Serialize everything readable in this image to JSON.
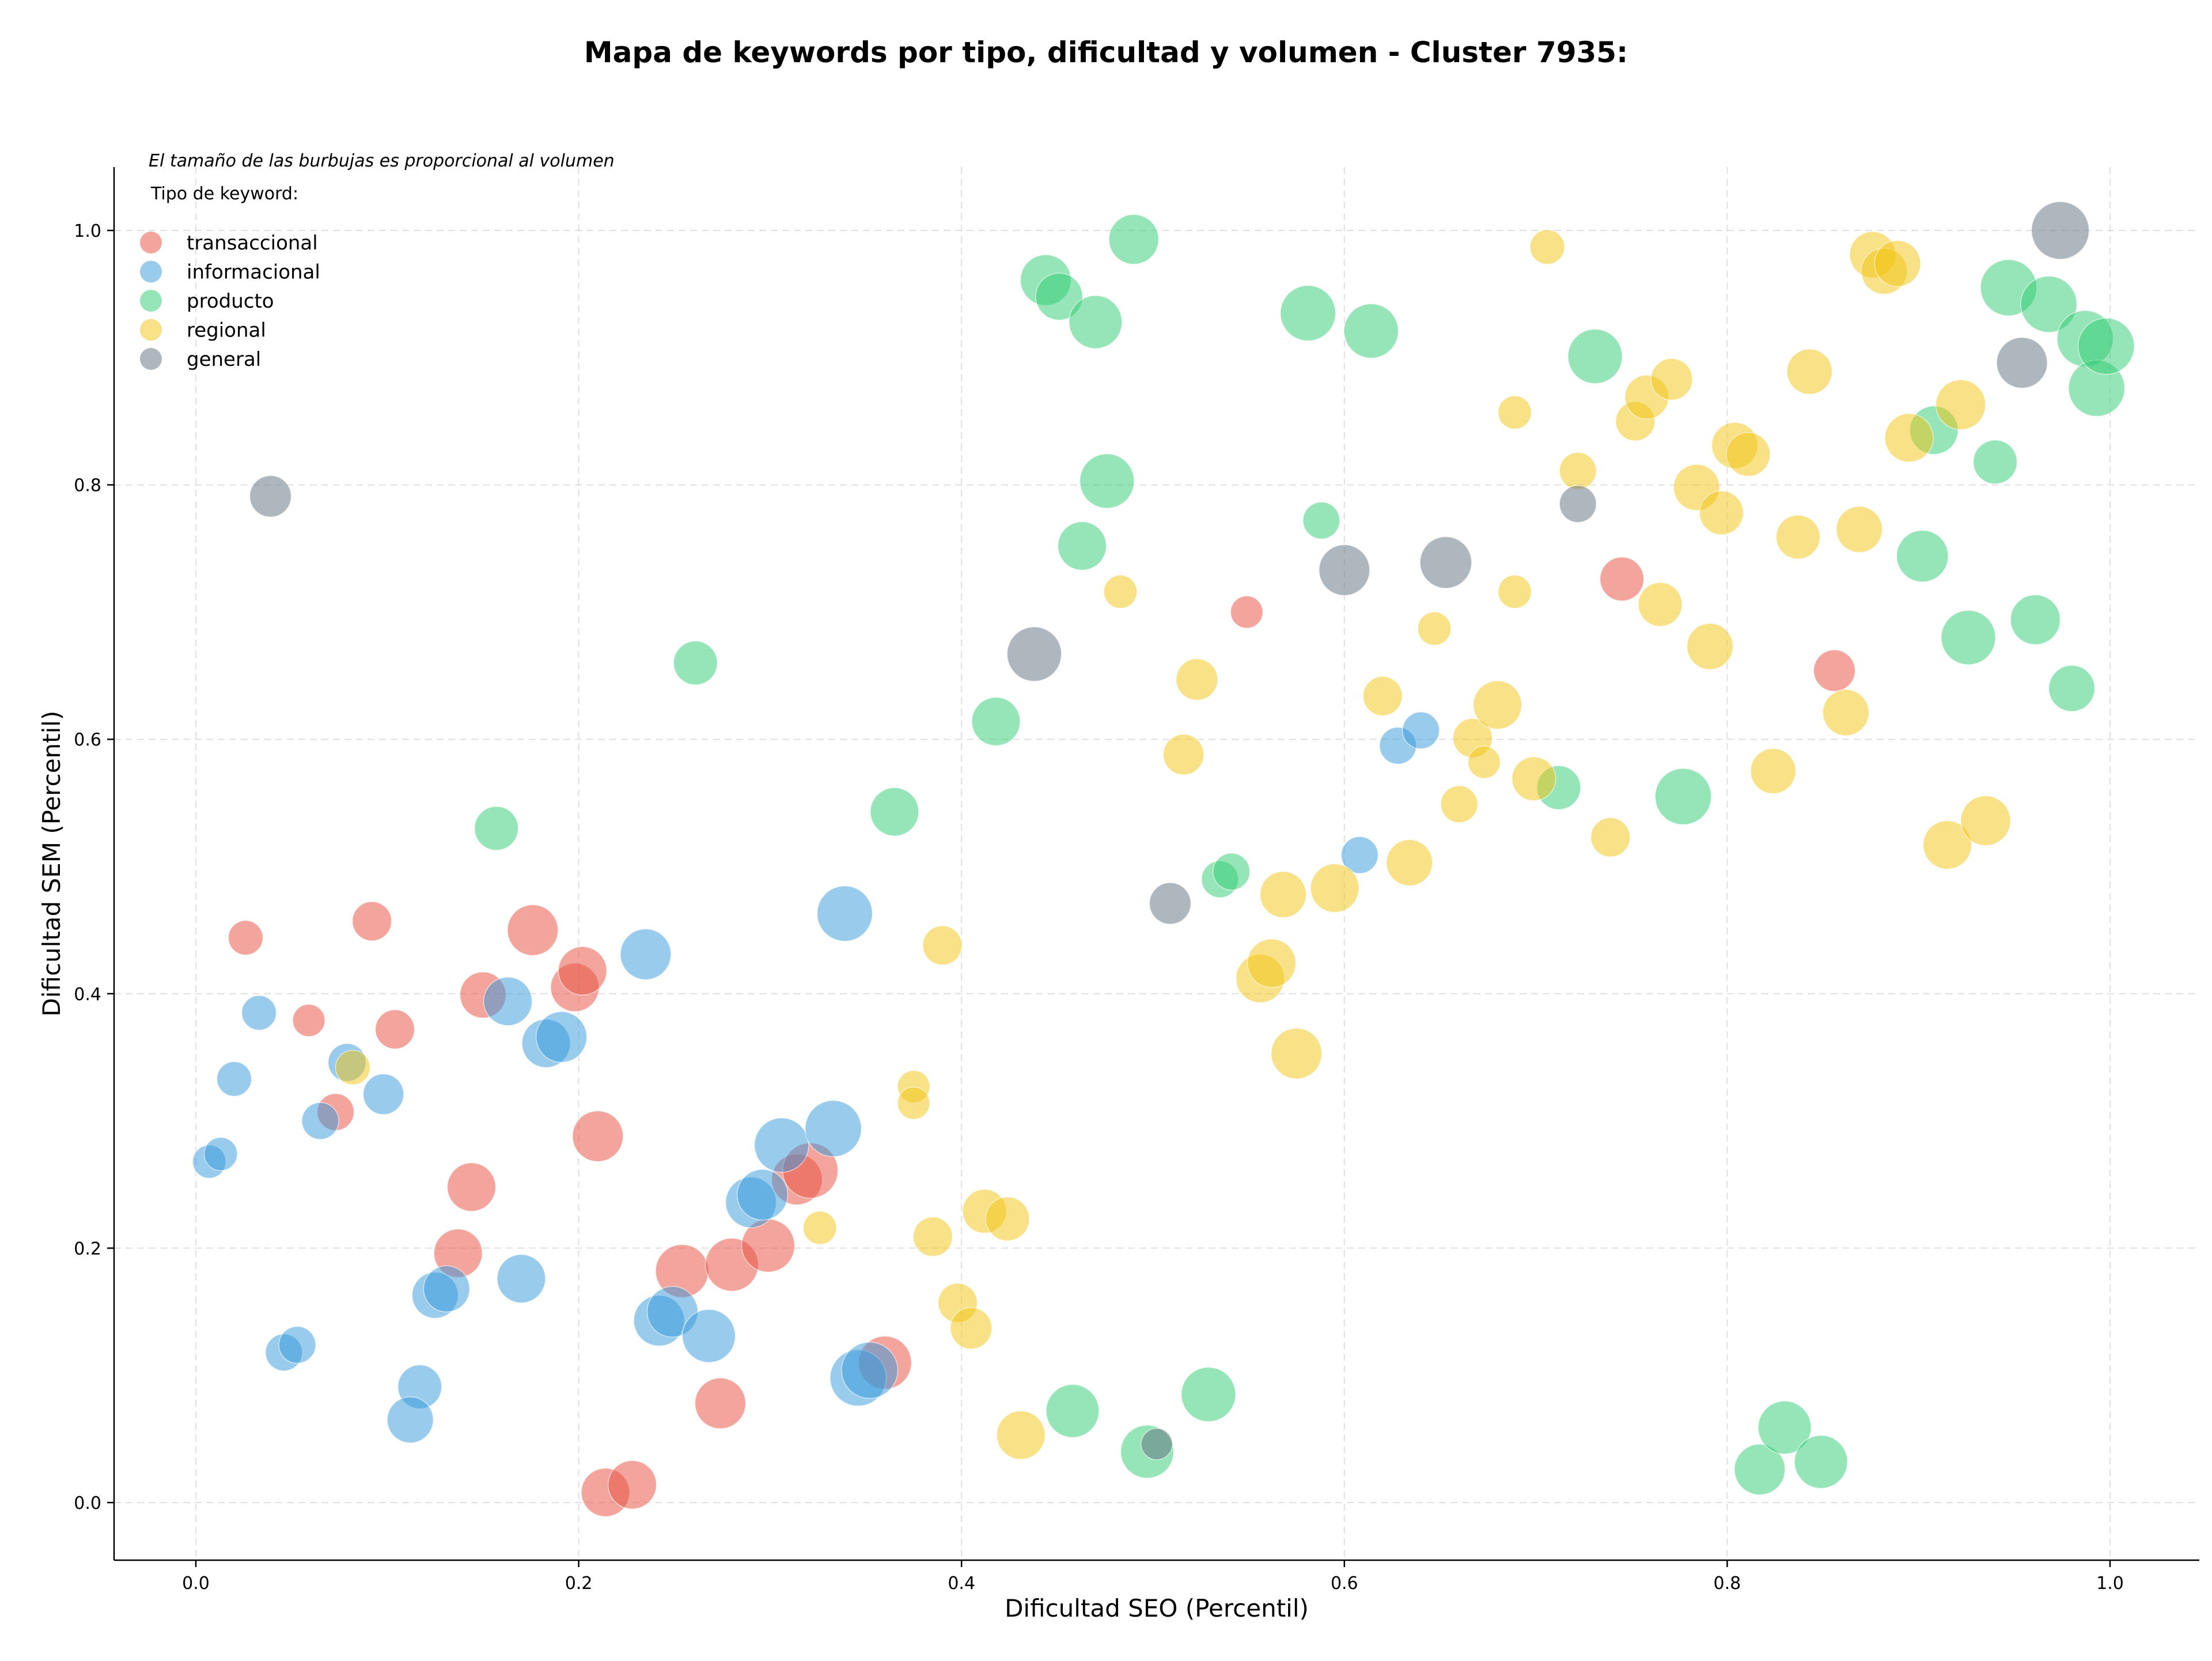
{
  "chart_data": {
    "type": "scatter",
    "title": "Mapa de keywords por tipo, dificultad y volumen - Cluster 7935:",
    "xlabel": "Dificultad SEO (Percentil)",
    "ylabel": "Dificultad SEM (Percentil)",
    "xlim": [
      -0.042,
      1.048
    ],
    "ylim": [
      -0.042,
      1.048
    ],
    "xticks": [
      "0.0",
      "0.2",
      "0.4",
      "0.6",
      "0.8",
      "1.0"
    ],
    "yticks": [
      "0.0",
      "0.2",
      "0.4",
      "0.6",
      "0.8",
      "1.0"
    ],
    "grid": true,
    "legend_position": "top-left",
    "note": "El tamaño de las burbujas es proporcional al volumen",
    "legend_title": "Tipo de keyword:",
    "series": [
      {
        "name": "transaccional",
        "color": "#e74c3c",
        "points": [
          [
            0.026,
            0.444,
            0.25
          ],
          [
            0.092,
            0.457,
            0.35
          ],
          [
            0.059,
            0.379,
            0.2
          ],
          [
            0.104,
            0.372,
            0.35
          ],
          [
            0.073,
            0.307,
            0.3
          ],
          [
            0.15,
            0.399,
            0.5
          ],
          [
            0.176,
            0.45,
            0.6
          ],
          [
            0.198,
            0.405,
            0.55
          ],
          [
            0.202,
            0.418,
            0.55
          ],
          [
            0.21,
            0.288,
            0.6
          ],
          [
            0.144,
            0.248,
            0.55
          ],
          [
            0.137,
            0.196,
            0.55
          ],
          [
            0.254,
            0.182,
            0.65
          ],
          [
            0.28,
            0.187,
            0.65
          ],
          [
            0.299,
            0.202,
            0.65
          ],
          [
            0.314,
            0.254,
            0.6
          ],
          [
            0.321,
            0.261,
            0.7
          ],
          [
            0.274,
            0.078,
            0.6
          ],
          [
            0.36,
            0.11,
            0.65
          ],
          [
            0.214,
            0.008,
            0.55
          ],
          [
            0.228,
            0.014,
            0.55
          ],
          [
            0.549,
            0.7,
            0.2
          ],
          [
            0.745,
            0.726,
            0.45
          ],
          [
            0.856,
            0.654,
            0.4
          ]
        ]
      },
      {
        "name": "informacional",
        "color": "#3498db",
        "points": [
          [
            0.033,
            0.385,
            0.25
          ],
          [
            0.02,
            0.333,
            0.25
          ],
          [
            0.007,
            0.268,
            0.22
          ],
          [
            0.013,
            0.274,
            0.22
          ],
          [
            0.065,
            0.3,
            0.3
          ],
          [
            0.079,
            0.346,
            0.32
          ],
          [
            0.098,
            0.321,
            0.38
          ],
          [
            0.163,
            0.394,
            0.55
          ],
          [
            0.183,
            0.361,
            0.55
          ],
          [
            0.191,
            0.366,
            0.6
          ],
          [
            0.235,
            0.431,
            0.6
          ],
          [
            0.339,
            0.463,
            0.7
          ],
          [
            0.125,
            0.163,
            0.5
          ],
          [
            0.131,
            0.168,
            0.5
          ],
          [
            0.17,
            0.176,
            0.55
          ],
          [
            0.046,
            0.118,
            0.3
          ],
          [
            0.053,
            0.124,
            0.3
          ],
          [
            0.117,
            0.091,
            0.45
          ],
          [
            0.112,
            0.065,
            0.5
          ],
          [
            0.242,
            0.143,
            0.6
          ],
          [
            0.249,
            0.15,
            0.6
          ],
          [
            0.268,
            0.131,
            0.65
          ],
          [
            0.29,
            0.236,
            0.6
          ],
          [
            0.296,
            0.242,
            0.6
          ],
          [
            0.306,
            0.281,
            0.68
          ],
          [
            0.333,
            0.294,
            0.72
          ],
          [
            0.346,
            0.098,
            0.72
          ],
          [
            0.352,
            0.104,
            0.72
          ],
          [
            0.608,
            0.509,
            0.3
          ],
          [
            0.628,
            0.595,
            0.3
          ],
          [
            0.64,
            0.607,
            0.3
          ]
        ]
      },
      {
        "name": "producto",
        "color": "#2ecc71",
        "points": [
          [
            0.444,
            0.961,
            0.6
          ],
          [
            0.451,
            0.948,
            0.52
          ],
          [
            0.49,
            0.993,
            0.58
          ],
          [
            0.47,
            0.928,
            0.65
          ],
          [
            0.581,
            0.935,
            0.7
          ],
          [
            0.614,
            0.921,
            0.68
          ],
          [
            0.476,
            0.803,
            0.68
          ],
          [
            0.463,
            0.752,
            0.55
          ],
          [
            0.588,
            0.772,
            0.3
          ],
          [
            0.731,
            0.901,
            0.68
          ],
          [
            0.261,
            0.66,
            0.45
          ],
          [
            0.418,
            0.614,
            0.55
          ],
          [
            0.365,
            0.543,
            0.55
          ],
          [
            0.157,
            0.53,
            0.45
          ],
          [
            0.535,
            0.49,
            0.3
          ],
          [
            0.541,
            0.496,
            0.3
          ],
          [
            0.712,
            0.562,
            0.45
          ],
          [
            0.777,
            0.555,
            0.72
          ],
          [
            0.458,
            0.072,
            0.65
          ],
          [
            0.497,
            0.04,
            0.65
          ],
          [
            0.529,
            0.085,
            0.68
          ],
          [
            0.817,
            0.026,
            0.6
          ],
          [
            0.83,
            0.059,
            0.65
          ],
          [
            0.849,
            0.032,
            0.65
          ],
          [
            0.902,
            0.744,
            0.62
          ],
          [
            0.908,
            0.843,
            0.55
          ],
          [
            0.926,
            0.68,
            0.68
          ],
          [
            0.94,
            0.818,
            0.45
          ],
          [
            0.947,
            0.955,
            0.72
          ],
          [
            0.961,
            0.694,
            0.58
          ],
          [
            0.968,
            0.942,
            0.72
          ],
          [
            0.98,
            0.64,
            0.5
          ],
          [
            0.987,
            0.915,
            0.72
          ],
          [
            0.993,
            0.876,
            0.72
          ],
          [
            0.998,
            0.909,
            0.72
          ]
        ]
      },
      {
        "name": "regional",
        "color": "#f1c40f",
        "points": [
          [
            0.082,
            0.342,
            0.25
          ],
          [
            0.326,
            0.216,
            0.22
          ],
          [
            0.375,
            0.327,
            0.2
          ],
          [
            0.375,
            0.314,
            0.2
          ],
          [
            0.39,
            0.438,
            0.35
          ],
          [
            0.385,
            0.209,
            0.35
          ],
          [
            0.398,
            0.157,
            0.35
          ],
          [
            0.405,
            0.137,
            0.4
          ],
          [
            0.412,
            0.229,
            0.45
          ],
          [
            0.424,
            0.223,
            0.45
          ],
          [
            0.431,
            0.053,
            0.55
          ],
          [
            0.483,
            0.716,
            0.22
          ],
          [
            0.516,
            0.588,
            0.38
          ],
          [
            0.523,
            0.647,
            0.4
          ],
          [
            0.556,
            0.412,
            0.55
          ],
          [
            0.562,
            0.424,
            0.55
          ],
          [
            0.568,
            0.478,
            0.5
          ],
          [
            0.575,
            0.353,
            0.6
          ],
          [
            0.595,
            0.483,
            0.55
          ],
          [
            0.62,
            0.634,
            0.35
          ],
          [
            0.634,
            0.503,
            0.5
          ],
          [
            0.647,
            0.687,
            0.22
          ],
          [
            0.66,
            0.549,
            0.3
          ],
          [
            0.667,
            0.601,
            0.35
          ],
          [
            0.673,
            0.582,
            0.2
          ],
          [
            0.68,
            0.627,
            0.55
          ],
          [
            0.689,
            0.857,
            0.22
          ],
          [
            0.689,
            0.716,
            0.22
          ],
          [
            0.699,
            0.569,
            0.45
          ],
          [
            0.706,
            0.987,
            0.25
          ],
          [
            0.722,
            0.811,
            0.3
          ],
          [
            0.739,
            0.523,
            0.35
          ],
          [
            0.752,
            0.85,
            0.35
          ],
          [
            0.758,
            0.869,
            0.45
          ],
          [
            0.765,
            0.706,
            0.45
          ],
          [
            0.771,
            0.883,
            0.4
          ],
          [
            0.784,
            0.798,
            0.5
          ],
          [
            0.791,
            0.673,
            0.5
          ],
          [
            0.797,
            0.778,
            0.45
          ],
          [
            0.804,
            0.831,
            0.5
          ],
          [
            0.811,
            0.824,
            0.45
          ],
          [
            0.824,
            0.575,
            0.48
          ],
          [
            0.837,
            0.759,
            0.45
          ],
          [
            0.843,
            0.889,
            0.48
          ],
          [
            0.862,
            0.621,
            0.5
          ],
          [
            0.869,
            0.765,
            0.5
          ],
          [
            0.876,
            0.981,
            0.5
          ],
          [
            0.882,
            0.968,
            0.5
          ],
          [
            0.889,
            0.974,
            0.5
          ],
          [
            0.895,
            0.837,
            0.55
          ],
          [
            0.915,
            0.517,
            0.55
          ],
          [
            0.922,
            0.863,
            0.58
          ],
          [
            0.935,
            0.536,
            0.58
          ]
        ]
      },
      {
        "name": "general",
        "color": "#5d6d7e",
        "points": [
          [
            0.039,
            0.791,
            0.4
          ],
          [
            0.438,
            0.667,
            0.68
          ],
          [
            0.502,
            0.046,
            0.18
          ],
          [
            0.509,
            0.471,
            0.4
          ],
          [
            0.6,
            0.733,
            0.6
          ],
          [
            0.653,
            0.739,
            0.62
          ],
          [
            0.722,
            0.785,
            0.3
          ],
          [
            0.954,
            0.896,
            0.6
          ],
          [
            0.974,
            1.0,
            0.75
          ]
        ]
      }
    ]
  }
}
